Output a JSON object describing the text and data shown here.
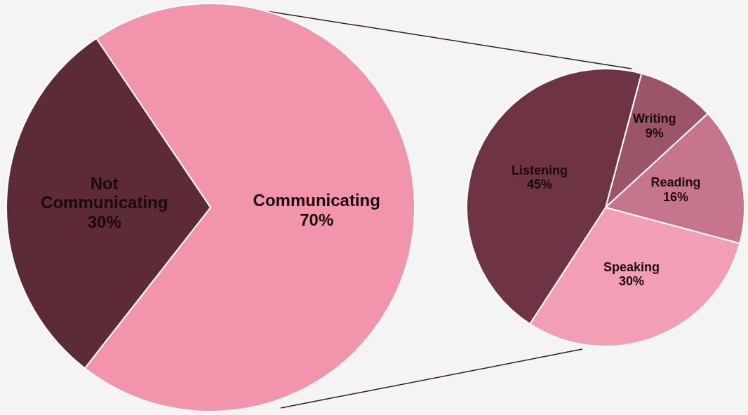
{
  "chart_data": [
    {
      "type": "pie",
      "categories": [
        "Communicating",
        "Not Communicating"
      ],
      "values": [
        70,
        30
      ],
      "colors": [
        "#f294ab",
        "#5c2b36"
      ],
      "value_labels": [
        "70%",
        "30%"
      ]
    },
    {
      "type": "pie",
      "categories": [
        "Writing",
        "Reading",
        "Speaking",
        "Listening"
      ],
      "values": [
        9,
        16,
        30,
        45
      ],
      "colors": [
        "#9c5468",
        "#c6758d",
        "#f29fb6",
        "#6e3443"
      ],
      "value_labels": [
        "9%",
        "16%",
        "30%",
        "45%"
      ]
    }
  ]
}
